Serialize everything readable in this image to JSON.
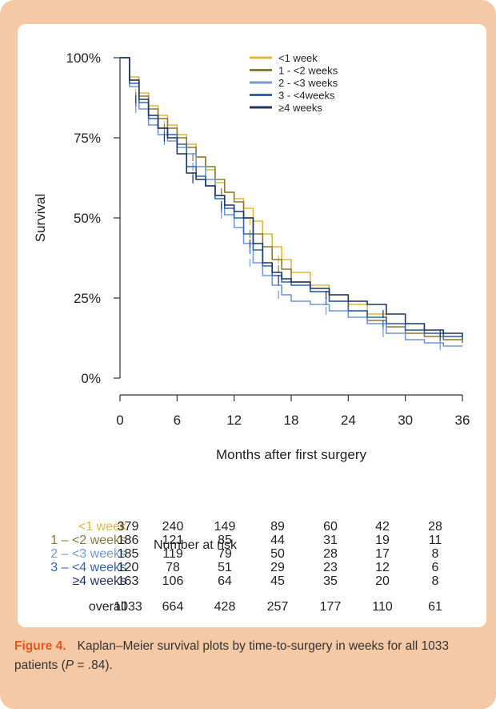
{
  "caption": {
    "figure_label": "Figure 4.",
    "text_before": "Kaplan–Meier survival plots by time-to-surgery in weeks for all 1033 patients (",
    "p_symbol": "P",
    "text_after": " = .84)."
  },
  "risk_table": {
    "title": "Number at risk",
    "rows": [
      {
        "label": "<1 week",
        "color": "#e3b53a",
        "values": [
          "379",
          "240",
          "149",
          "89",
          "60",
          "42",
          "28"
        ]
      },
      {
        "label": "1 – <2 weeks",
        "color": "#8a7a3c",
        "values": [
          "186",
          "121",
          "85",
          "44",
          "31",
          "19",
          "11"
        ]
      },
      {
        "label": "2 – <3 weeks",
        "color": "#6f9ad6",
        "values": [
          "185",
          "119",
          "79",
          "50",
          "28",
          "17",
          "8"
        ]
      },
      {
        "label": "3 – <4 weeks",
        "color": "#2e66b1",
        "values": [
          "120",
          "78",
          "51",
          "29",
          "23",
          "12",
          "6"
        ]
      },
      {
        "label": "≥4 weeks",
        "color": "#1f3566",
        "values": [
          "163",
          "106",
          "64",
          "45",
          "35",
          "20",
          "8"
        ]
      },
      {
        "label": "overall",
        "color": "#222222",
        "values": [
          "1033",
          "664",
          "428",
          "257",
          "177",
          "110",
          "61"
        ]
      }
    ]
  },
  "chart_data": {
    "type": "line",
    "xlabel": "Months after first surgery",
    "ylabel": "Survival",
    "xlim": [
      0,
      36
    ],
    "ylim": [
      0,
      100
    ],
    "x_ticks": [
      0,
      6,
      12,
      18,
      24,
      30,
      36
    ],
    "y_ticks": [
      0,
      25,
      50,
      75,
      100
    ],
    "y_tick_labels": [
      "0%",
      "25%",
      "50%",
      "75%",
      "100%"
    ],
    "legend_position": "top-right",
    "series": [
      {
        "name": "<1 week",
        "color": "#e3b53a",
        "x": [
          0,
          1,
          2,
          3,
          4,
          5,
          6,
          7,
          8,
          9,
          10,
          11,
          12,
          13,
          14,
          15,
          16,
          17,
          18,
          20,
          22,
          24,
          26,
          28,
          30,
          32,
          34,
          36
        ],
        "y": [
          100,
          94,
          89,
          85,
          82,
          79,
          76,
          73,
          69,
          65,
          61,
          58,
          56,
          53,
          49,
          45,
          41,
          37,
          33,
          29,
          26,
          23,
          20,
          17,
          15,
          14,
          13,
          12
        ]
      },
      {
        "name": "1 - <2 weeks",
        "color": "#8a7a3c",
        "x": [
          0,
          1,
          2,
          3,
          4,
          5,
          6,
          7,
          8,
          9,
          10,
          11,
          12,
          13,
          14,
          15,
          16,
          17,
          18,
          20,
          22,
          24,
          26,
          28,
          30,
          32,
          34,
          36
        ],
        "y": [
          100,
          93,
          88,
          84,
          81,
          78,
          75,
          72,
          69,
          66,
          62,
          58,
          55,
          50,
          45,
          41,
          37,
          34,
          30,
          27,
          24,
          21,
          18,
          16,
          14,
          13,
          12,
          11
        ]
      },
      {
        "name": "2 - <3 weeks",
        "color": "#6f9ad6",
        "x": [
          0,
          1,
          2,
          3,
          4,
          5,
          6,
          7,
          8,
          9,
          10,
          11,
          12,
          13,
          14,
          15,
          16,
          17,
          18,
          20,
          22,
          24,
          26,
          28,
          30,
          32,
          34,
          36
        ],
        "y": [
          100,
          91,
          84,
          79,
          76,
          74,
          72,
          70,
          66,
          62,
          57,
          51,
          47,
          42,
          36,
          32,
          29,
          26,
          24,
          23,
          21,
          19,
          17,
          14,
          12,
          11,
          10,
          10
        ]
      },
      {
        "name": "3 - <4weeks",
        "color": "#2e66b1",
        "x": [
          0,
          1,
          2,
          3,
          4,
          5,
          6,
          7,
          8,
          9,
          10,
          11,
          12,
          13,
          14,
          15,
          16,
          17,
          18,
          20,
          22,
          24,
          26,
          28,
          30,
          32,
          34,
          36
        ],
        "y": [
          100,
          92,
          86,
          81,
          78,
          76,
          73,
          66,
          63,
          60,
          56,
          53,
          50,
          45,
          40,
          35,
          32,
          30,
          29,
          27,
          24,
          21,
          19,
          17,
          15,
          14,
          13,
          12
        ]
      },
      {
        "name": "≥4 weeks",
        "color": "#1f3566",
        "x": [
          0,
          1,
          2,
          3,
          4,
          5,
          6,
          7,
          8,
          9,
          10,
          11,
          12,
          13,
          14,
          15,
          16,
          17,
          18,
          20,
          22,
          24,
          26,
          28,
          30,
          32,
          34,
          36
        ],
        "y": [
          100,
          93,
          87,
          82,
          78,
          75,
          70,
          64,
          62,
          60,
          57,
          54,
          52,
          50,
          42,
          36,
          33,
          31,
          30,
          28,
          26,
          24,
          23,
          20,
          17,
          15,
          14,
          13
        ]
      }
    ]
  }
}
